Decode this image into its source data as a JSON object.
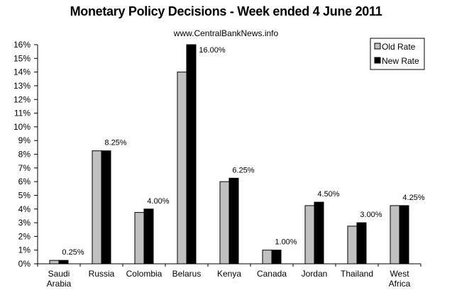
{
  "chart_data": {
    "type": "bar",
    "title": "Monetary Policy Decisions - Week ended 4 June 2011",
    "subtitle": "www.CentralBankNews.info",
    "xlabel": "",
    "ylabel": "",
    "ylim": [
      0,
      16
    ],
    "yticks": [
      "0%",
      "1%",
      "2%",
      "3%",
      "4%",
      "5%",
      "6%",
      "7%",
      "8%",
      "9%",
      "10%",
      "11%",
      "12%",
      "13%",
      "14%",
      "15%",
      "16%"
    ],
    "grid": false,
    "legend_position": "top-right",
    "categories": [
      [
        "Saudi",
        "Arabia"
      ],
      [
        "Russia"
      ],
      [
        "Colombia"
      ],
      [
        "Belarus"
      ],
      [
        "Kenya"
      ],
      [
        "Canada"
      ],
      [
        "Jordan"
      ],
      [
        "Thailand"
      ],
      [
        "West",
        "Africa"
      ]
    ],
    "series": [
      {
        "name": "Old Rate",
        "color": "#c0c0c0",
        "values": [
          0.25,
          8.25,
          3.75,
          14.0,
          6.0,
          1.0,
          4.25,
          2.75,
          4.25
        ]
      },
      {
        "name": "New Rate",
        "color": "#000000",
        "values": [
          0.25,
          8.25,
          4.0,
          16.0,
          6.25,
          1.0,
          4.5,
          3.0,
          4.25
        ]
      }
    ],
    "data_labels": [
      "0.25%",
      "8.25%",
      "4.00%",
      "16.00%",
      "6.25%",
      "1.00%",
      "4.50%",
      "3.00%",
      "4.25%"
    ]
  }
}
